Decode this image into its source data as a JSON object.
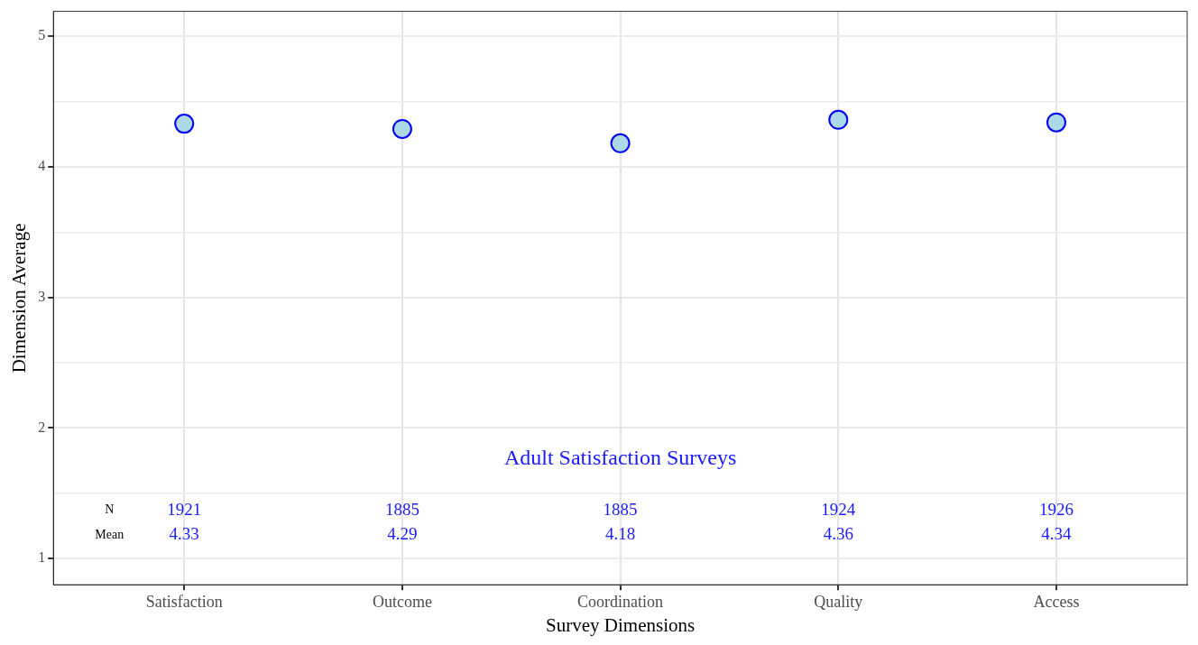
{
  "chart_data": {
    "type": "scatter",
    "xlabel": "Survey Dimensions",
    "ylabel": "Dimension Average",
    "categories": [
      "Satisfaction",
      "Outcome",
      "Coordination",
      "Quality",
      "Access"
    ],
    "series": [
      {
        "color": "#add8e6",
        "values": [
          4.33,
          4.29,
          4.18,
          4.36,
          4.34
        ]
      }
    ],
    "marker": "circle",
    "grid": true,
    "ylim": [
      0.8,
      5.19
    ],
    "yticks": [
      1,
      {
        "value": 1.5,
        "label": null
      },
      2,
      {
        "value": 2.5,
        "label": null
      },
      3,
      {
        "value": 3.5,
        "label": null
      },
      4,
      {
        "value": 4.5,
        "label": null
      },
      5
    ],
    "annotations": [
      "Adult Satisfaction Surveys",
      "N",
      "Mean",
      "1921",
      "1885",
      "1885",
      "1924",
      "1926",
      "4.33",
      "4.29",
      "4.18",
      "4.36",
      "4.34"
    ]
  }
}
